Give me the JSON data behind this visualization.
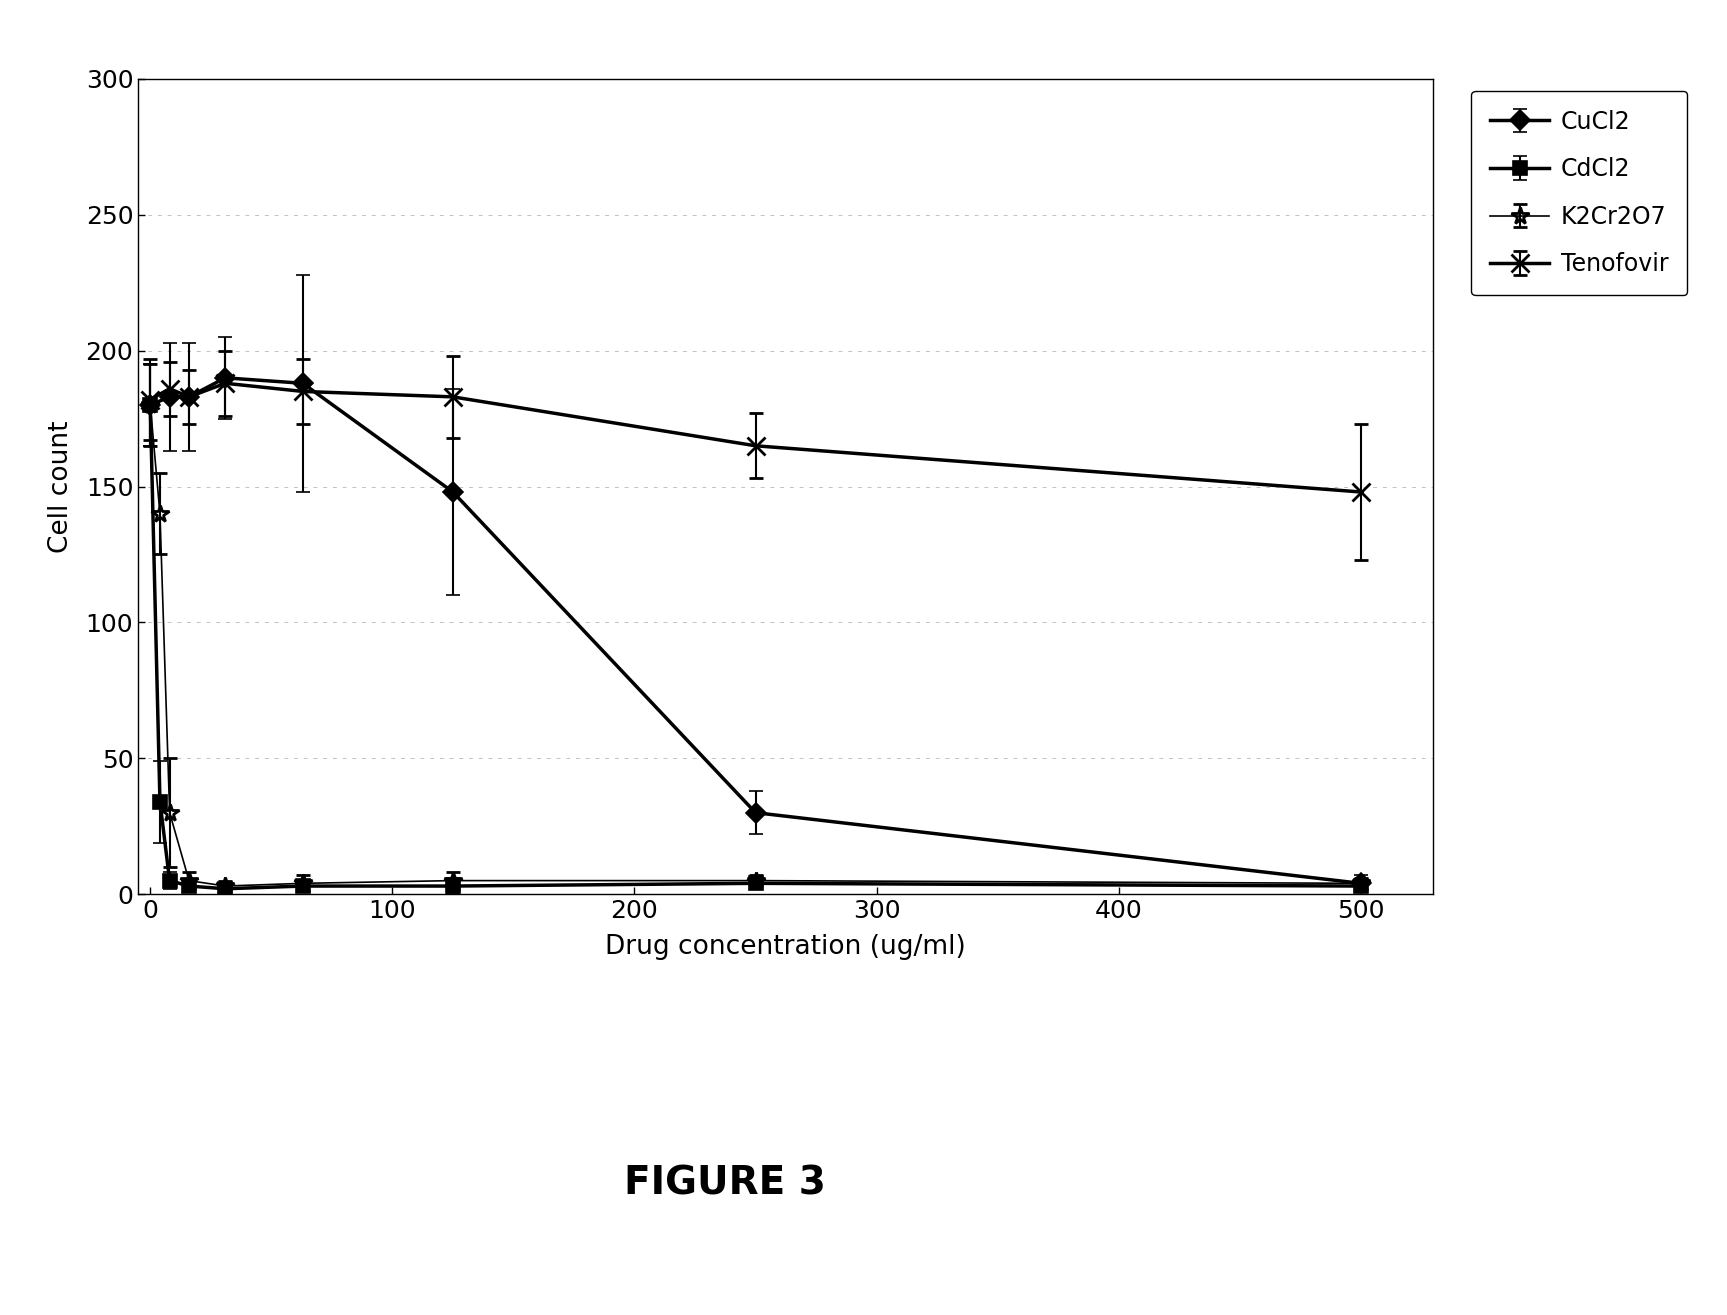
{
  "CuCl2": {
    "x": [
      0,
      8,
      16,
      31,
      63,
      125,
      250,
      500
    ],
    "y": [
      180,
      183,
      183,
      190,
      188,
      148,
      30,
      4
    ],
    "yerr": [
      15,
      20,
      20,
      15,
      40,
      38,
      8,
      3
    ],
    "color": "#000000",
    "marker": "D",
    "markersize": 10,
    "linewidth": 2.5,
    "linestyle": "-",
    "label": "CuCl2"
  },
  "CdCl2": {
    "x": [
      0,
      4,
      8,
      16,
      31,
      63,
      125,
      250,
      500
    ],
    "y": [
      180,
      34,
      5,
      3,
      2,
      3,
      3,
      4,
      3
    ],
    "yerr": [
      15,
      15,
      3,
      2,
      2,
      2,
      3,
      2,
      2
    ],
    "color": "#000000",
    "marker": "s",
    "markersize": 10,
    "linewidth": 2.5,
    "linestyle": "-",
    "label": "CdCl2"
  },
  "K2Cr2O7": {
    "x": [
      0,
      4,
      8,
      16,
      31,
      63,
      125,
      250,
      500
    ],
    "y": [
      180,
      140,
      30,
      5,
      3,
      4,
      5,
      5,
      4
    ],
    "yerr": [
      15,
      15,
      20,
      3,
      2,
      3,
      3,
      2,
      2
    ],
    "color": "#000000",
    "marker": "*",
    "markersize": 13,
    "linewidth": 1.2,
    "linestyle": "-",
    "label": "K2Cr2O7"
  },
  "Tenofovir": {
    "x": [
      0,
      8,
      16,
      31,
      63,
      125,
      250,
      500
    ],
    "y": [
      182,
      186,
      183,
      188,
      185,
      183,
      165,
      148
    ],
    "yerr": [
      15,
      10,
      10,
      12,
      12,
      15,
      12,
      25
    ],
    "color": "#000000",
    "marker": "x",
    "markersize": 13,
    "linewidth": 2.5,
    "linestyle": "-",
    "label": "Tenofovir"
  },
  "xlabel": "Drug concentration (ug/ml)",
  "ylabel": "Cell count",
  "xlim": [
    -5,
    530
  ],
  "ylim": [
    0,
    300
  ],
  "yticks": [
    0,
    50,
    100,
    150,
    200,
    250,
    300
  ],
  "xticks": [
    0,
    100,
    200,
    300,
    400,
    500
  ],
  "grid_color": "#999999",
  "figure_caption": "FIGURE 3",
  "background_color": "#ffffff"
}
